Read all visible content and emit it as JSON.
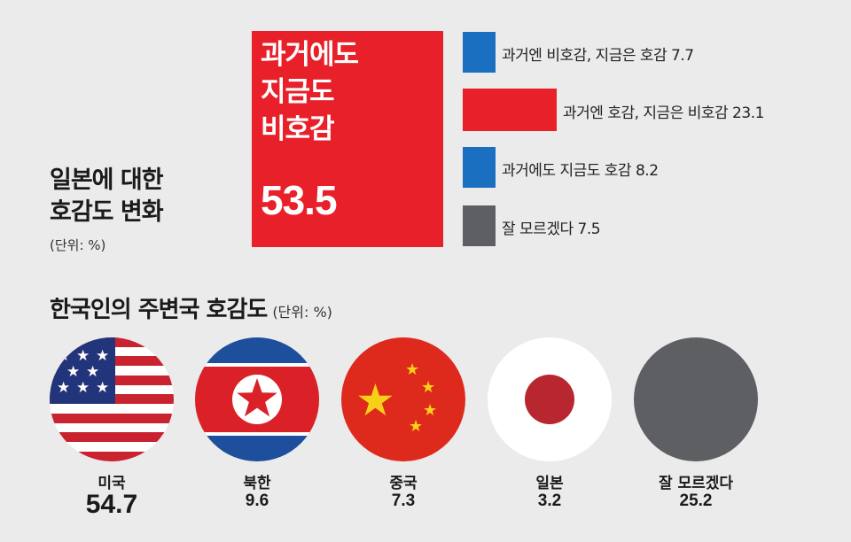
{
  "chart_data": [
    {
      "type": "bar",
      "title": "일본에 대한 호감도 변화",
      "title_lines": [
        "일본에 대한",
        "호감도 변화"
      ],
      "unit": "(단위: %)",
      "highlight": {
        "label_lines": [
          "과거에도",
          "지금도",
          "비호감"
        ],
        "value": "53.5"
      },
      "categories": [
        "과거엔 비호감, 지금은 호감",
        "과거엔 호감, 지금은 비호감",
        "과거에도 지금도 호감",
        "잘 모르겠다"
      ],
      "values": [
        7.7,
        23.1,
        8.2,
        7.5
      ],
      "bar_colors": [
        "#1a6fc0",
        "#e8202a",
        "#1a6fc0",
        "#5e5f63"
      ]
    },
    {
      "type": "table",
      "title": "한국인의 주변국 호감도",
      "unit": "(단위: %)",
      "categories": [
        "미국",
        "북한",
        "중국",
        "일본",
        "잘 모르겠다"
      ],
      "values": [
        "54.7",
        "9.6",
        "7.3",
        "3.2",
        "25.2"
      ],
      "icons": [
        "usa-flag-icon",
        "north-korea-flag-icon",
        "china-flag-icon",
        "japan-flag-icon",
        "gray-circle-icon"
      ]
    }
  ],
  "colors": {
    "red": "#e8202a",
    "blue": "#1a6fc0",
    "gray": "#5e5f63",
    "background": "#ebebeb"
  }
}
